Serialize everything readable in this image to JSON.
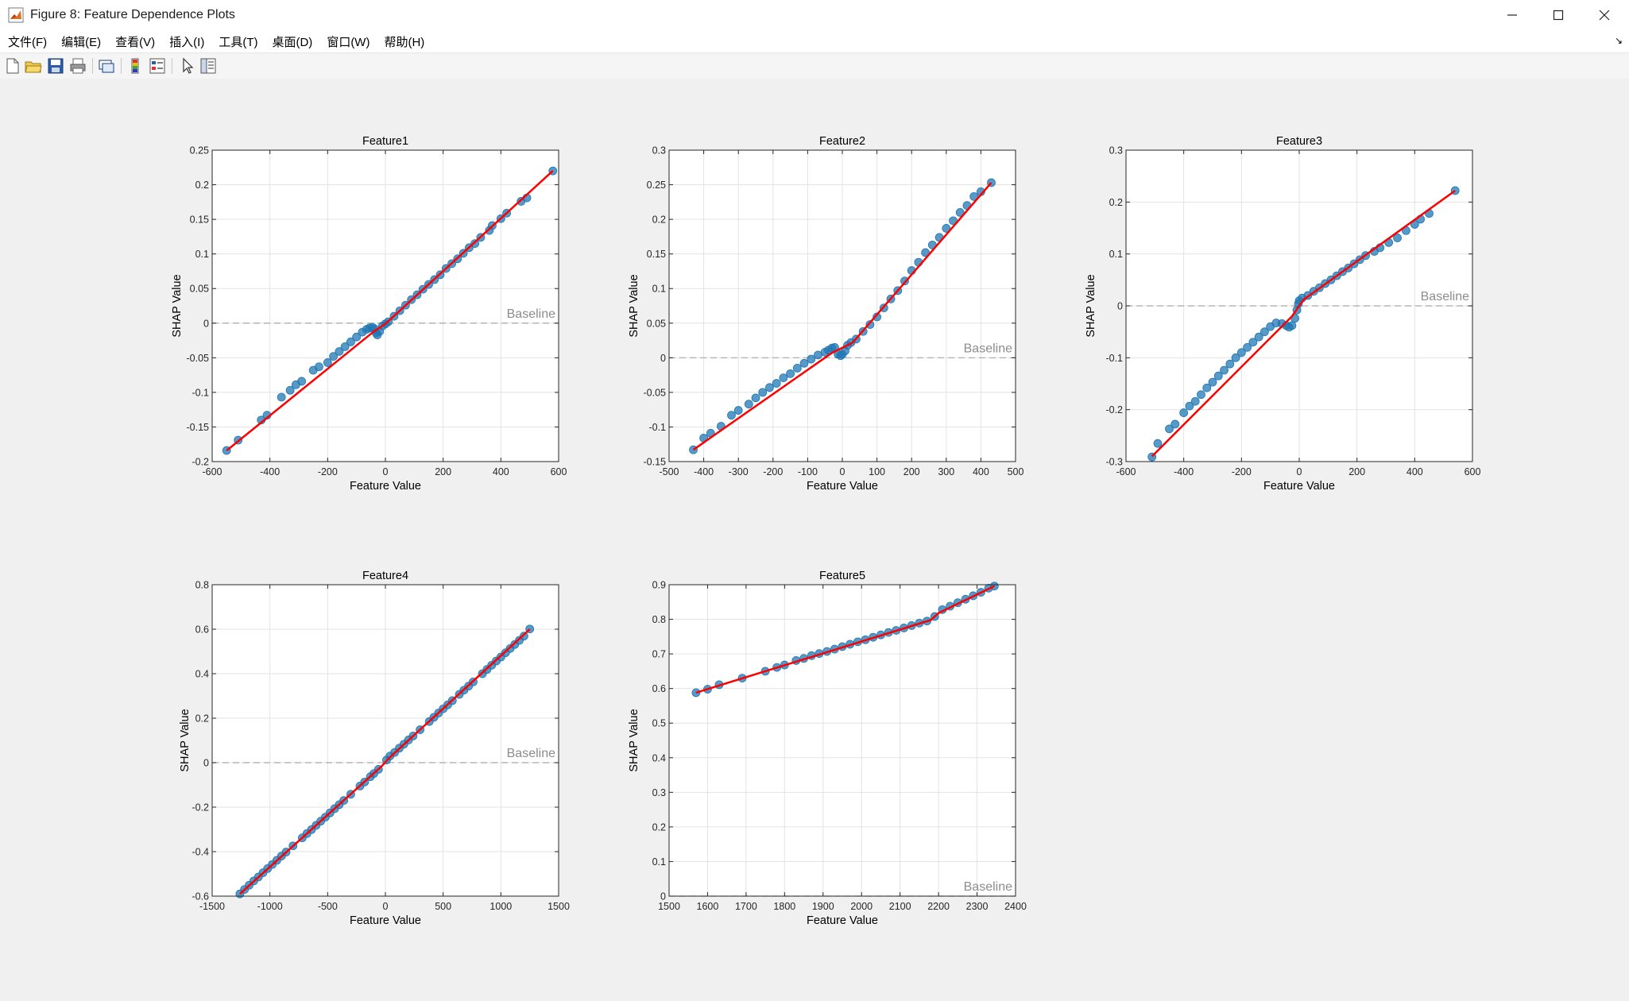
{
  "window": {
    "title": "Figure 8: Feature Dependence Plots",
    "icon": "matlab-figure-icon",
    "controls": [
      "minimize-icon",
      "maximize-icon",
      "close-icon"
    ]
  },
  "menu": {
    "items": [
      "文件(F)",
      "编辑(E)",
      "查看(V)",
      "插入(I)",
      "工具(T)",
      "桌面(D)",
      "窗口(W)",
      "帮助(H)"
    ],
    "dock_glyph": "↘"
  },
  "toolbar": {
    "buttons": [
      "new-figure-icon",
      "open-file-icon",
      "save-icon",
      "print-icon",
      "link-plot-icon",
      "colorbar-icon",
      "legend-icon",
      "edit-plot-icon",
      "property-inspector-icon"
    ]
  },
  "colors": {
    "points": "#1f77b4",
    "fit_line": "#ff0000",
    "baseline": "#a8a8a8",
    "axes_bg": "#ffffff",
    "figure_bg": "#f0f0f0"
  },
  "chart_data": [
    {
      "type": "scatter",
      "title": "Feature1",
      "xlabel": "Feature Value",
      "ylabel": "SHAP Value",
      "xlim": [
        -600,
        600
      ],
      "ylim": [
        -0.2,
        0.25
      ],
      "xticks": [
        -600,
        -400,
        -200,
        0,
        200,
        400,
        600
      ],
      "yticks": [
        -0.2,
        -0.15,
        -0.1,
        -0.05,
        0,
        0.05,
        0.1,
        0.15,
        0.2,
        0.25
      ],
      "xtick_labels": [
        "-600",
        "-400",
        "-200",
        "0",
        "200",
        "400",
        "600"
      ],
      "ytick_labels": [
        "-0.2",
        "-0.15",
        "-0.1",
        "-0.05",
        "0",
        "0.05",
        "0.1",
        "0.15",
        "0.2",
        "0.25"
      ],
      "grid": true,
      "baseline": {
        "y": 0,
        "label": "Baseline"
      },
      "points": [
        [
          -550,
          -0.184
        ],
        [
          -510,
          -0.169
        ],
        [
          -430,
          -0.14
        ],
        [
          -410,
          -0.133
        ],
        [
          -360,
          -0.107
        ],
        [
          -330,
          -0.097
        ],
        [
          -310,
          -0.089
        ],
        [
          -290,
          -0.084
        ],
        [
          -250,
          -0.068
        ],
        [
          -230,
          -0.063
        ],
        [
          -200,
          -0.057
        ],
        [
          -180,
          -0.048
        ],
        [
          -160,
          -0.041
        ],
        [
          -140,
          -0.034
        ],
        [
          -120,
          -0.027
        ],
        [
          -100,
          -0.02
        ],
        [
          -80,
          -0.013
        ],
        [
          -65,
          -0.009
        ],
        [
          -55,
          -0.007
        ],
        [
          -45,
          -0.006
        ],
        [
          -38,
          -0.008
        ],
        [
          -32,
          -0.014
        ],
        [
          -28,
          -0.017
        ],
        [
          -20,
          -0.012
        ],
        [
          -10,
          -0.004
        ],
        [
          0,
          -0.001
        ],
        [
          10,
          0.002
        ],
        [
          30,
          0.01
        ],
        [
          50,
          0.018
        ],
        [
          70,
          0.026
        ],
        [
          90,
          0.034
        ],
        [
          110,
          0.041
        ],
        [
          130,
          0.049
        ],
        [
          150,
          0.056
        ],
        [
          170,
          0.063
        ],
        [
          190,
          0.07
        ],
        [
          210,
          0.079
        ],
        [
          230,
          0.086
        ],
        [
          250,
          0.093
        ],
        [
          270,
          0.101
        ],
        [
          290,
          0.109
        ],
        [
          310,
          0.115
        ],
        [
          330,
          0.124
        ],
        [
          360,
          0.134
        ],
        [
          370,
          0.141
        ],
        [
          400,
          0.151
        ],
        [
          420,
          0.159
        ],
        [
          470,
          0.176
        ],
        [
          490,
          0.181
        ],
        [
          580,
          0.22
        ]
      ],
      "fit": [
        [
          -550,
          -0.184
        ],
        [
          -40,
          -0.012
        ],
        [
          0,
          -0.001
        ],
        [
          580,
          0.22
        ]
      ]
    },
    {
      "type": "scatter",
      "title": "Feature2",
      "xlabel": "Feature Value",
      "ylabel": "SHAP Value",
      "xlim": [
        -500,
        500
      ],
      "ylim": [
        -0.15,
        0.3
      ],
      "xticks": [
        -500,
        -400,
        -300,
        -200,
        -100,
        0,
        100,
        200,
        300,
        400,
        500
      ],
      "yticks": [
        -0.15,
        -0.1,
        -0.05,
        0,
        0.05,
        0.1,
        0.15,
        0.2,
        0.25,
        0.3
      ],
      "xtick_labels": [
        "-500",
        "-400",
        "-300",
        "-200",
        "-100",
        "0",
        "100",
        "200",
        "300",
        "400",
        "500"
      ],
      "ytick_labels": [
        "-0.15",
        "-0.1",
        "-0.05",
        "0",
        "0.05",
        "0.1",
        "0.15",
        "0.2",
        "0.25",
        "0.3"
      ],
      "grid": true,
      "baseline": {
        "y": 0,
        "label": "Baseline"
      },
      "points": [
        [
          -430,
          -0.133
        ],
        [
          -400,
          -0.116
        ],
        [
          -380,
          -0.109
        ],
        [
          -350,
          -0.099
        ],
        [
          -320,
          -0.083
        ],
        [
          -300,
          -0.076
        ],
        [
          -270,
          -0.067
        ],
        [
          -250,
          -0.058
        ],
        [
          -230,
          -0.05
        ],
        [
          -210,
          -0.043
        ],
        [
          -190,
          -0.037
        ],
        [
          -170,
          -0.029
        ],
        [
          -150,
          -0.023
        ],
        [
          -130,
          -0.015
        ],
        [
          -110,
          -0.008
        ],
        [
          -90,
          -0.002
        ],
        [
          -70,
          0.004
        ],
        [
          -50,
          0.008
        ],
        [
          -40,
          0.011
        ],
        [
          -30,
          0.014
        ],
        [
          -22,
          0.015
        ],
        [
          -12,
          0.005
        ],
        [
          -5,
          0.003
        ],
        [
          0,
          0.005
        ],
        [
          8,
          0.01
        ],
        [
          15,
          0.018
        ],
        [
          25,
          0.022
        ],
        [
          40,
          0.027
        ],
        [
          60,
          0.038
        ],
        [
          80,
          0.048
        ],
        [
          100,
          0.059
        ],
        [
          120,
          0.072
        ],
        [
          140,
          0.085
        ],
        [
          160,
          0.097
        ],
        [
          180,
          0.111
        ],
        [
          200,
          0.126
        ],
        [
          220,
          0.138
        ],
        [
          240,
          0.152
        ],
        [
          260,
          0.163
        ],
        [
          280,
          0.174
        ],
        [
          300,
          0.187
        ],
        [
          320,
          0.198
        ],
        [
          340,
          0.21
        ],
        [
          360,
          0.22
        ],
        [
          380,
          0.233
        ],
        [
          400,
          0.24
        ],
        [
          430,
          0.253
        ]
      ],
      "fit": [
        [
          -430,
          -0.133
        ],
        [
          -30,
          0.007
        ],
        [
          30,
          0.022
        ],
        [
          430,
          0.253
        ]
      ]
    },
    {
      "type": "scatter",
      "title": "Feature3",
      "xlabel": "Feature Value",
      "ylabel": "SHAP Value",
      "xlim": [
        -600,
        600
      ],
      "ylim": [
        -0.3,
        0.3
      ],
      "xticks": [
        -600,
        -400,
        -200,
        0,
        200,
        400,
        600
      ],
      "yticks": [
        -0.3,
        -0.2,
        -0.1,
        0,
        0.1,
        0.2,
        0.3
      ],
      "xtick_labels": [
        "-600",
        "-400",
        "-200",
        "0",
        "200",
        "400",
        "600"
      ],
      "ytick_labels": [
        "-0.3",
        "-0.2",
        "-0.1",
        "0",
        "0.1",
        "0.2",
        "0.3"
      ],
      "grid": true,
      "baseline": {
        "y": 0,
        "label": "Baseline"
      },
      "points": [
        [
          -510,
          -0.291
        ],
        [
          -490,
          -0.265
        ],
        [
          -450,
          -0.237
        ],
        [
          -430,
          -0.228
        ],
        [
          -400,
          -0.206
        ],
        [
          -380,
          -0.193
        ],
        [
          -360,
          -0.184
        ],
        [
          -340,
          -0.171
        ],
        [
          -320,
          -0.158
        ],
        [
          -300,
          -0.147
        ],
        [
          -280,
          -0.135
        ],
        [
          -260,
          -0.124
        ],
        [
          -240,
          -0.112
        ],
        [
          -220,
          -0.1
        ],
        [
          -200,
          -0.09
        ],
        [
          -180,
          -0.08
        ],
        [
          -160,
          -0.07
        ],
        [
          -140,
          -0.06
        ],
        [
          -120,
          -0.05
        ],
        [
          -100,
          -0.04
        ],
        [
          -80,
          -0.033
        ],
        [
          -60,
          -0.034
        ],
        [
          -45,
          -0.038
        ],
        [
          -35,
          -0.041
        ],
        [
          -25,
          -0.038
        ],
        [
          -15,
          -0.024
        ],
        [
          -8,
          -0.008
        ],
        [
          -3,
          0.004
        ],
        [
          0,
          0.01
        ],
        [
          10,
          0.015
        ],
        [
          30,
          0.02
        ],
        [
          50,
          0.028
        ],
        [
          70,
          0.035
        ],
        [
          90,
          0.043
        ],
        [
          110,
          0.05
        ],
        [
          130,
          0.058
        ],
        [
          150,
          0.066
        ],
        [
          170,
          0.073
        ],
        [
          190,
          0.081
        ],
        [
          210,
          0.089
        ],
        [
          230,
          0.097
        ],
        [
          260,
          0.105
        ],
        [
          280,
          0.112
        ],
        [
          310,
          0.122
        ],
        [
          340,
          0.131
        ],
        [
          370,
          0.145
        ],
        [
          400,
          0.157
        ],
        [
          420,
          0.167
        ],
        [
          450,
          0.178
        ],
        [
          540,
          0.222
        ]
      ],
      "fit": [
        [
          -510,
          -0.29
        ],
        [
          -25,
          -0.02
        ],
        [
          0,
          0.0
        ],
        [
          15,
          0.012
        ],
        [
          540,
          0.222
        ]
      ]
    },
    {
      "type": "scatter",
      "title": "Feature4",
      "xlabel": "Feature Value",
      "ylabel": "SHAP Value",
      "xlim": [
        -1500,
        1500
      ],
      "ylim": [
        -0.6,
        0.8
      ],
      "xticks": [
        -1500,
        -1000,
        -500,
        0,
        500,
        1000,
        1500
      ],
      "yticks": [
        -0.6,
        -0.4,
        -0.2,
        0,
        0.2,
        0.4,
        0.6,
        0.8
      ],
      "xtick_labels": [
        "-1500",
        "-1000",
        "-500",
        "0",
        "500",
        "1000",
        "1500"
      ],
      "ytick_labels": [
        "-0.6",
        "-0.4",
        "-0.2",
        "0",
        "0.2",
        "0.4",
        "0.6",
        "0.8"
      ],
      "grid": true,
      "baseline": {
        "y": 0,
        "label": "Baseline"
      },
      "points": [
        [
          -1260,
          -0.59
        ],
        [
          -1220,
          -0.57
        ],
        [
          -1180,
          -0.551
        ],
        [
          -1140,
          -0.532
        ],
        [
          -1100,
          -0.514
        ],
        [
          -1060,
          -0.495
        ],
        [
          -1020,
          -0.476
        ],
        [
          -980,
          -0.458
        ],
        [
          -940,
          -0.439
        ],
        [
          -900,
          -0.42
        ],
        [
          -860,
          -0.402
        ],
        [
          -800,
          -0.374
        ],
        [
          -720,
          -0.338
        ],
        [
          -680,
          -0.319
        ],
        [
          -640,
          -0.301
        ],
        [
          -600,
          -0.282
        ],
        [
          -560,
          -0.263
        ],
        [
          -520,
          -0.245
        ],
        [
          -480,
          -0.226
        ],
        [
          -440,
          -0.207
        ],
        [
          -400,
          -0.189
        ],
        [
          -360,
          -0.17
        ],
        [
          -300,
          -0.142
        ],
        [
          -220,
          -0.105
        ],
        [
          -180,
          -0.087
        ],
        [
          -130,
          -0.063
        ],
        [
          -100,
          -0.049
        ],
        [
          -60,
          -0.03
        ],
        [
          10,
          0.012
        ],
        [
          40,
          0.03
        ],
        [
          80,
          0.046
        ],
        [
          120,
          0.065
        ],
        [
          160,
          0.083
        ],
        [
          200,
          0.102
        ],
        [
          240,
          0.12
        ],
        [
          300,
          0.148
        ],
        [
          380,
          0.185
        ],
        [
          420,
          0.204
        ],
        [
          460,
          0.223
        ],
        [
          500,
          0.242
        ],
        [
          540,
          0.26
        ],
        [
          580,
          0.279
        ],
        [
          640,
          0.307
        ],
        [
          680,
          0.326
        ],
        [
          720,
          0.344
        ],
        [
          760,
          0.363
        ],
        [
          840,
          0.4
        ],
        [
          880,
          0.419
        ],
        [
          920,
          0.438
        ],
        [
          960,
          0.457
        ],
        [
          1000,
          0.475
        ],
        [
          1040,
          0.494
        ],
        [
          1080,
          0.513
        ],
        [
          1120,
          0.531
        ],
        [
          1160,
          0.55
        ],
        [
          1200,
          0.569
        ],
        [
          1250,
          0.601
        ]
      ],
      "fit": [
        [
          -1260,
          -0.59
        ],
        [
          -30,
          -0.015
        ],
        [
          30,
          0.02
        ],
        [
          1250,
          0.6
        ]
      ]
    },
    {
      "type": "scatter",
      "title": "Feature5",
      "xlabel": "Feature Value",
      "ylabel": "SHAP Value",
      "xlim": [
        1500,
        2400
      ],
      "ylim": [
        0,
        0.9
      ],
      "xticks": [
        1500,
        1600,
        1700,
        1800,
        1900,
        2000,
        2100,
        2200,
        2300,
        2400
      ],
      "yticks": [
        0,
        0.1,
        0.2,
        0.3,
        0.4,
        0.5,
        0.6,
        0.7,
        0.8,
        0.9
      ],
      "xtick_labels": [
        "1500",
        "1600",
        "1700",
        "1800",
        "1900",
        "2000",
        "2100",
        "2200",
        "2300",
        "2400"
      ],
      "ytick_labels": [
        "0",
        "0.1",
        "0.2",
        "0.3",
        "0.4",
        "0.5",
        "0.6",
        "0.7",
        "0.8",
        "0.9"
      ],
      "grid": true,
      "baseline": {
        "y": 0,
        "label": "Baseline"
      },
      "points": [
        [
          1570,
          0.588
        ],
        [
          1600,
          0.598
        ],
        [
          1630,
          0.611
        ],
        [
          1690,
          0.63
        ],
        [
          1750,
          0.65
        ],
        [
          1780,
          0.661
        ],
        [
          1800,
          0.668
        ],
        [
          1830,
          0.681
        ],
        [
          1850,
          0.687
        ],
        [
          1870,
          0.695
        ],
        [
          1890,
          0.701
        ],
        [
          1910,
          0.707
        ],
        [
          1930,
          0.714
        ],
        [
          1950,
          0.721
        ],
        [
          1970,
          0.728
        ],
        [
          1990,
          0.735
        ],
        [
          2010,
          0.741
        ],
        [
          2030,
          0.748
        ],
        [
          2050,
          0.755
        ],
        [
          2070,
          0.762
        ],
        [
          2090,
          0.768
        ],
        [
          2110,
          0.775
        ],
        [
          2130,
          0.782
        ],
        [
          2150,
          0.789
        ],
        [
          2170,
          0.795
        ],
        [
          2190,
          0.808
        ],
        [
          2210,
          0.828
        ],
        [
          2230,
          0.838
        ],
        [
          2250,
          0.848
        ],
        [
          2270,
          0.858
        ],
        [
          2290,
          0.868
        ],
        [
          2310,
          0.878
        ],
        [
          2330,
          0.89
        ],
        [
          2345,
          0.896
        ]
      ],
      "fit": [
        [
          1570,
          0.588
        ],
        [
          2180,
          0.798
        ],
        [
          2200,
          0.818
        ],
        [
          2345,
          0.896
        ]
      ]
    }
  ]
}
